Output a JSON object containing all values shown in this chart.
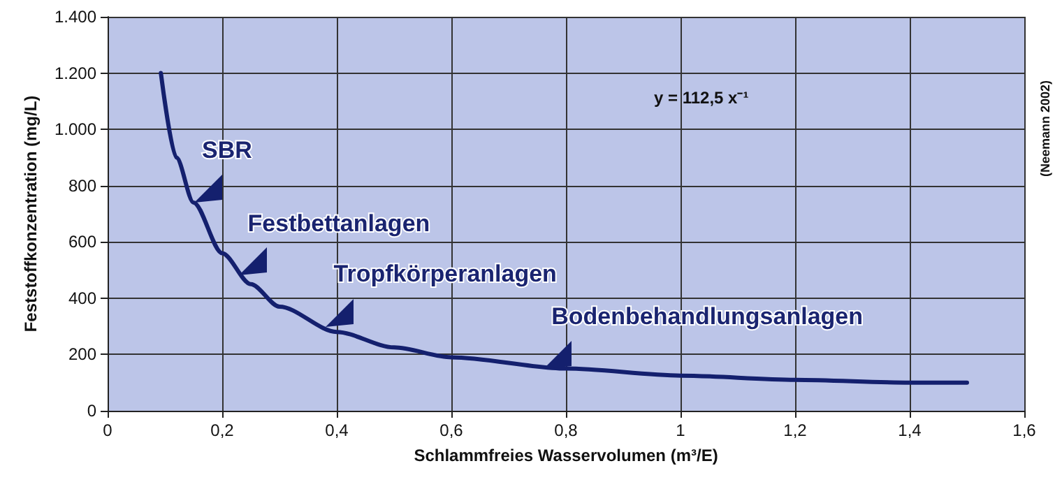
{
  "chart_data": {
    "type": "line",
    "xlabel": "Schlammfreies Wasservolumen (m³/E)",
    "ylabel": "Feststoffkonzentration (mg/L)",
    "series": [
      {
        "color": "#14206e",
        "x": [
          0.093,
          0.12,
          0.15,
          0.2,
          0.25,
          0.3,
          0.4,
          0.5,
          0.6,
          0.8,
          1.0,
          1.2,
          1.4,
          1.5
        ],
        "values": [
          1200,
          900,
          740,
          560,
          450,
          370,
          280,
          225,
          190,
          150,
          125,
          110,
          100,
          100
        ]
      }
    ],
    "xlim": [
      0,
      1.6
    ],
    "xticks": [
      0,
      {
        "value": 0.2,
        "label": "0,2"
      },
      {
        "value": 0.4,
        "label": "0,4"
      },
      {
        "value": 0.6,
        "label": "0,6"
      },
      {
        "value": 0.8,
        "label": "0,8"
      },
      1,
      {
        "value": 1.2,
        "label": "1,2"
      },
      {
        "value": 1.4,
        "label": "1,4"
      },
      {
        "value": 1.6,
        "label": "1,6"
      }
    ],
    "ylim": [
      0,
      1400
    ],
    "yticks": [
      0,
      200,
      400,
      600,
      800,
      {
        "value": 1000,
        "label": "1.000"
      },
      {
        "value": 1200,
        "label": "1.200"
      },
      {
        "value": 1400,
        "label": "1.400"
      }
    ],
    "grid": true,
    "marker": "none",
    "line_style": "solid",
    "annotations": [
      {
        "text": "SBR",
        "x": 0.15,
        "y": 740
      },
      {
        "text": "Festbettanlagen",
        "x": 0.23,
        "y": 480
      },
      {
        "text": "Tropfkörperanlagen",
        "x": 0.38,
        "y": 300
      },
      {
        "text": "Bodenbehandlungsanlagen",
        "x": 0.76,
        "y": 150
      },
      "y = 112,5 x⁻¹",
      "(Neemann 2002)"
    ]
  }
}
